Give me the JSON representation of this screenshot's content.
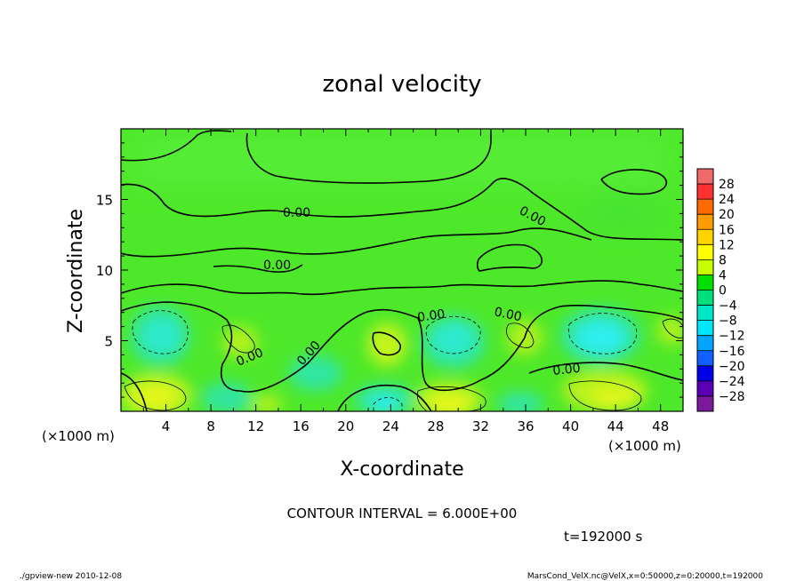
{
  "chart_data": {
    "type": "heatmap",
    "title": "zonal velocity",
    "xlabel": "X-coordinate",
    "ylabel": "Z-coordinate",
    "x_unit": "(×1000 m)",
    "z_unit": "(×1000 m)",
    "xlim": [
      0,
      50
    ],
    "ylim": [
      0,
      20
    ],
    "x_ticks": [
      "4",
      "8",
      "12",
      "16",
      "20",
      "24",
      "28",
      "32",
      "36",
      "40",
      "44",
      "48"
    ],
    "y_ticks": [
      "5",
      "10",
      "15"
    ],
    "colorbar": {
      "labels": [
        "28",
        "24",
        "20",
        "16",
        "12",
        "8",
        "4",
        "0",
        "−4",
        "−8",
        "−12",
        "−16",
        "−20",
        "−24",
        "−28"
      ],
      "colors": [
        "#f06a6a",
        "#ff3030",
        "#ff6a00",
        "#ff9a00",
        "#ffd400",
        "#ffff00",
        "#c8ff00",
        "#00e000",
        "#00e07a",
        "#00e6c8",
        "#00e6ff",
        "#00a6ff",
        "#1060ff",
        "#0000e6",
        "#5a00b4",
        "#7a1a9a"
      ]
    },
    "contour_labels": [
      "0.00",
      "0.00",
      "0.00",
      "0.00",
      "0.00",
      "0.00",
      "0.00",
      "0.00",
      "0.00"
    ],
    "contour_interval": "CONTOUR INTERVAL = 6.000E+00",
    "time_label": "t=192000 s"
  },
  "footer": {
    "left": "./gpview-new   2010-12-08",
    "right": "MarsCond_VelX.nc@VelX,x=0:50000,z=0:20000,t=192000"
  }
}
